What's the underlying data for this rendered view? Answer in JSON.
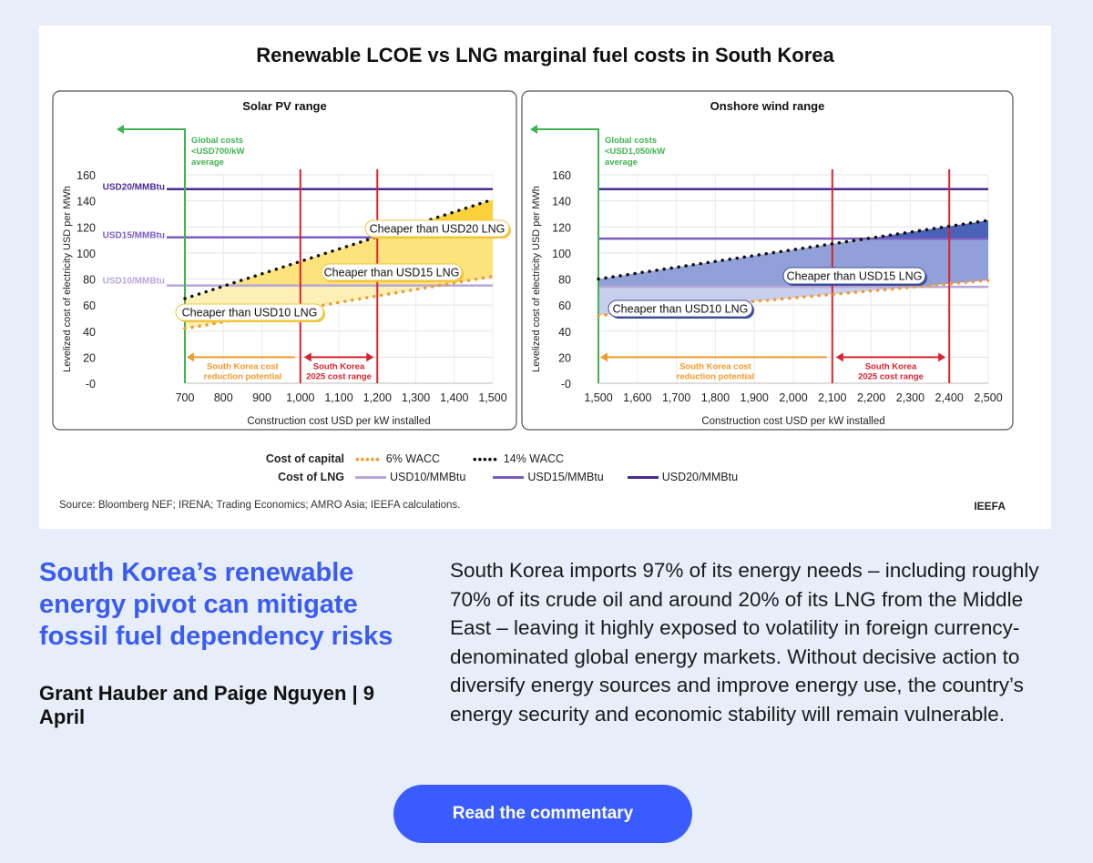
{
  "chart_data": {
    "title": "Renewable LCOE vs LNG marginal fuel costs in South Korea",
    "type": "line",
    "ylabel": "Levelized cost of electricity USD per MWh",
    "xlabel": "Construction cost USD per kW installed",
    "ylim": [
      0,
      160
    ],
    "yticks": [
      "-0",
      "20",
      "40",
      "60",
      "80",
      "100",
      "120",
      "140",
      "160"
    ],
    "grid": true,
    "legend": {
      "placement": "bottom",
      "cost_of_capital_label": "Cost of capital",
      "cost_of_lng_label": "Cost of LNG",
      "wacc6": "6% WACC",
      "wacc14": "14% WACC",
      "usd10": "USD10/MMBtu",
      "usd15": "USD15/MMBtu",
      "usd20": "USD20/MMBtu"
    },
    "colors": {
      "wacc6": "#f39a2b",
      "wacc14": "#111111",
      "usd10": "#b7a6da",
      "usd15": "#7b5cc0",
      "usd20": "#4b2a92",
      "global": "#3fb34f",
      "range": "#d9232e",
      "reduction": "#f39a2b"
    },
    "panels": [
      {
        "title": "Solar PV range",
        "xlim": [
          700,
          1500
        ],
        "xticks": [
          "700",
          "800",
          "900",
          "1,000",
          "1,100",
          "1,200",
          "1,300",
          "1,400",
          "1,500"
        ],
        "series": [
          {
            "name": "6% WACC",
            "x": [
              700,
              1500
            ],
            "y": [
              42,
              82
            ]
          },
          {
            "name": "14% WACC",
            "x": [
              700,
              1500
            ],
            "y": [
              65,
              141
            ]
          }
        ],
        "lng_levels": [
          {
            "name": "USD10/MMBtu",
            "y": 75,
            "label": "USD10/MMBtu"
          },
          {
            "name": "USD15/MMBtu",
            "y": 112,
            "label": "USD15/MMBtu"
          },
          {
            "name": "USD20/MMBtu",
            "y": 149,
            "label": "USD20/MMBtu"
          }
        ],
        "global_cost_x": 700,
        "global_note": [
          "Global costs",
          "<USD700/kW",
          "average"
        ],
        "range_x": [
          1000,
          1200
        ],
        "reduction_note": [
          "South Korea cost",
          "reduction  potential"
        ],
        "range_note": [
          "South Korea",
          "2025 cost range"
        ],
        "callouts": [
          "Cheaper than  USD10 LNG",
          "Cheaper than USD15 LNG",
          "Cheaper than USD20 LNG"
        ],
        "fill_colors": [
          "#fdf0b6",
          "#fde37c",
          "#fcd23c"
        ]
      },
      {
        "title": "Onshore wind range",
        "xlim": [
          1500,
          2500
        ],
        "xticks": [
          "1,500",
          "1,600",
          "1,700",
          "1,800",
          "1,900",
          "2,000",
          "2,100",
          "2,200",
          "2,300",
          "2,400",
          "2,500"
        ],
        "series": [
          {
            "name": "6% WACC",
            "x": [
              1500,
              2500
            ],
            "y": [
              52,
              79
            ]
          },
          {
            "name": "14% WACC",
            "x": [
              1500,
              2500
            ],
            "y": [
              80,
              125
            ]
          }
        ],
        "lng_levels": [
          {
            "name": "USD10/MMBtu",
            "y": 74,
            "label": ""
          },
          {
            "name": "USD15/MMBtu",
            "y": 111,
            "label": ""
          },
          {
            "name": "USD20/MMBtu",
            "y": 149,
            "label": ""
          }
        ],
        "global_cost_x": 1500,
        "global_note": [
          "Global costs",
          "<USD1,050/kW",
          "average"
        ],
        "range_x": [
          2100,
          2400
        ],
        "reduction_note": [
          "South Korea cost",
          "reduction  potential"
        ],
        "range_note": [
          "South Korea",
          "2025 cost range"
        ],
        "callouts": [
          "Cheaper than USD10 LNG",
          "Cheaper than USD15 LNG"
        ],
        "fill_colors": [
          "#c8cfec",
          "#91a0d8",
          "#4a62b8"
        ]
      }
    ],
    "source": "Source: Bloomberg NEF; IRENA; Trading Economics; AMRO Asia; IEEFA calculations.",
    "brand": "IEEFA"
  },
  "article": {
    "headline": "South Korea’s renewable energy pivot can mitigate fossil fuel dependency risks",
    "byline": "Grant Hauber and Paige Nguyen | 9 April",
    "body": "South Korea imports 97% of its energy needs – including roughly 70% of its crude oil and around 20% of its LNG from the Middle East – leaving it highly exposed to volatility in foreign currency-denominated global energy markets. Without decisive action to diversify energy sources and improve energy use, the country’s energy security and economic stability will remain vulnerable.",
    "cta": "Read the commentary"
  }
}
